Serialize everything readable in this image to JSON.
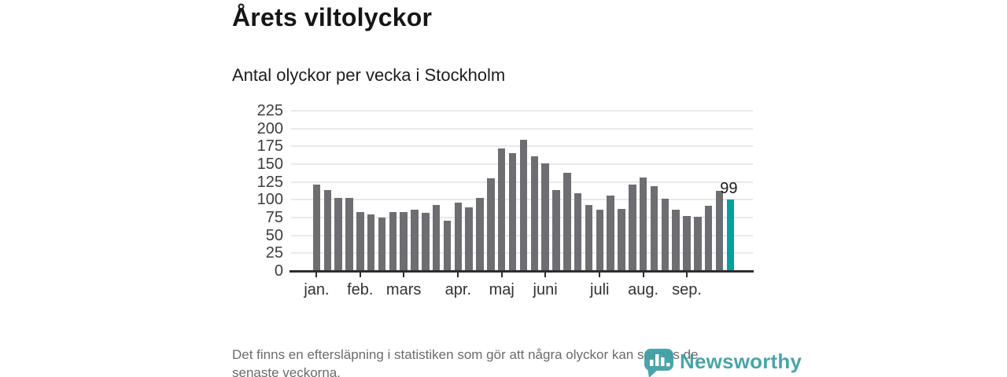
{
  "header": {
    "title": "Årets viltolyckor",
    "subtitle": "Antal olyckor per vecka i Stockholm"
  },
  "chart_data": {
    "type": "bar",
    "title": "Årets viltolyckor",
    "subtitle": "Antal olyckor per vecka i Stockholm",
    "xlabel": "",
    "ylabel": "",
    "x_weeks": [
      1,
      2,
      3,
      4,
      5,
      6,
      7,
      8,
      9,
      10,
      11,
      12,
      13,
      14,
      15,
      16,
      17,
      18,
      19,
      20,
      21,
      22,
      23,
      24,
      25,
      26,
      27,
      28,
      29,
      30,
      31,
      32,
      33,
      34,
      35,
      36,
      37,
      38,
      39
    ],
    "values": [
      120,
      112,
      101,
      102,
      82,
      78,
      74,
      82,
      82,
      85,
      80,
      92,
      70,
      95,
      88,
      101,
      129,
      171,
      164,
      183,
      160,
      150,
      112,
      137,
      108,
      92,
      85,
      105,
      86,
      120,
      130,
      118,
      100,
      85,
      76,
      75,
      91,
      111,
      99
    ],
    "last_value_label": "99",
    "highlight_last": true,
    "bar_color": "#6e6e72",
    "highlight_color": "#00a39c",
    "ylim": [
      0,
      225
    ],
    "yticks": [
      0,
      25,
      50,
      75,
      100,
      125,
      150,
      175,
      200,
      225
    ],
    "grid": true,
    "legend": "none",
    "month_ticks": [
      {
        "label": "jan.",
        "week": 1
      },
      {
        "label": "feb.",
        "week": 5
      },
      {
        "label": "mars",
        "week": 9
      },
      {
        "label": "apr.",
        "week": 14
      },
      {
        "label": "maj",
        "week": 18
      },
      {
        "label": "juni",
        "week": 22
      },
      {
        "label": "juli",
        "week": 27
      },
      {
        "label": "aug.",
        "week": 31
      },
      {
        "label": "sep.",
        "week": 35
      }
    ]
  },
  "footnote": {
    "line1": "Det finns en eftersläpning i statistiken som gör att några olyckor kan saknas de",
    "line2": "senaste veckorna."
  },
  "logo": {
    "text": "Newsworthy",
    "icon": "newsworthy-pin-barchart-icon",
    "color": "#3c9fa3"
  }
}
